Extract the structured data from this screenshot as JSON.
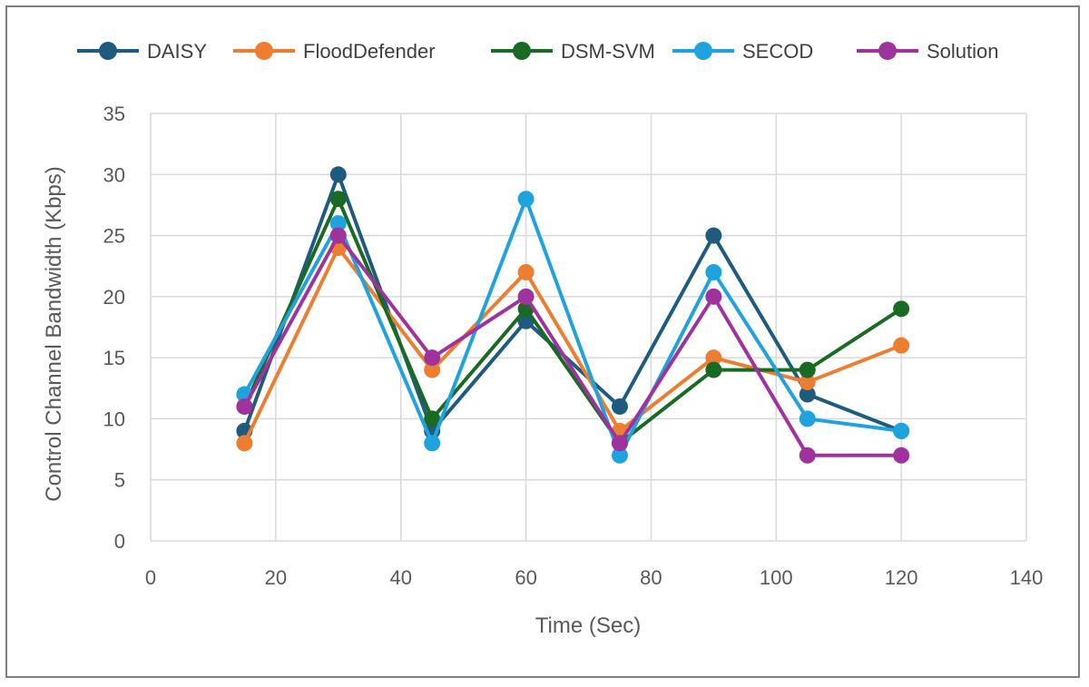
{
  "chart_data": {
    "type": "line",
    "xlabel": "Time (Sec)",
    "ylabel": "Control Channel Bandwidth (Kbps)",
    "xlim": [
      0,
      140
    ],
    "ylim": [
      0,
      35
    ],
    "xticks": [
      0,
      20,
      40,
      60,
      80,
      100,
      120,
      140
    ],
    "yticks": [
      0,
      5,
      10,
      15,
      20,
      25,
      30,
      35
    ],
    "grid": true,
    "legend_position": "top",
    "x": [
      15,
      30,
      45,
      60,
      75,
      90,
      105,
      120
    ],
    "series": [
      {
        "name": "DAISY",
        "color": "#1f5a7f",
        "values": [
          9,
          30,
          9,
          18,
          11,
          25,
          12,
          9
        ]
      },
      {
        "name": "FloodDefender",
        "color": "#ed7d31",
        "values": [
          8,
          24,
          14,
          22,
          9,
          15,
          13,
          16
        ]
      },
      {
        "name": "DSM-SVM",
        "color": "#196b24",
        "values": [
          11,
          28,
          10,
          19,
          8,
          14,
          14,
          19
        ]
      },
      {
        "name": "SECOD",
        "color": "#1ea3de",
        "values": [
          12,
          26,
          8,
          28,
          7,
          22,
          10,
          9
        ]
      },
      {
        "name": "Solution",
        "color": "#a0329e",
        "values": [
          11,
          25,
          15,
          20,
          8,
          20,
          7,
          7
        ]
      }
    ]
  }
}
